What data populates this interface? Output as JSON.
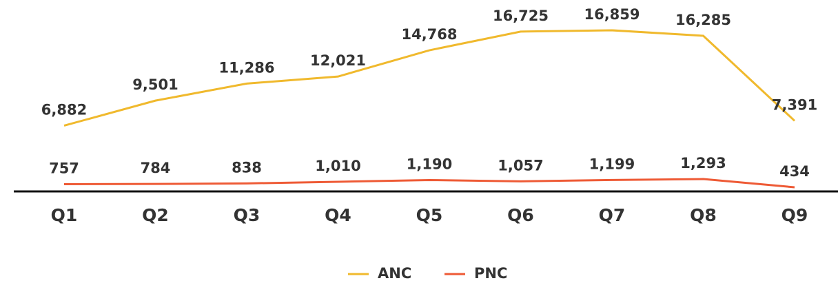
{
  "chart_data": {
    "type": "line",
    "categories": [
      "Q1",
      "Q2",
      "Q3",
      "Q4",
      "Q5",
      "Q6",
      "Q7",
      "Q8",
      "Q9"
    ],
    "series": [
      {
        "name": "ANC",
        "color": "#f0b92d",
        "values": [
          6882,
          9501,
          11286,
          12021,
          14768,
          16725,
          16859,
          16285,
          7391
        ],
        "value_labels": [
          "6,882",
          "9,501",
          "11,286",
          "12,021",
          "14,768",
          "16,725",
          "16,859",
          "16,285",
          "7,391"
        ]
      },
      {
        "name": "PNC",
        "color": "#ee5a35",
        "values": [
          757,
          784,
          838,
          1010,
          1190,
          1057,
          1199,
          1293,
          434
        ],
        "value_labels": [
          "757",
          "784",
          "838",
          "1,010",
          "1,190",
          "1,057",
          "1,199",
          "1,293",
          "434"
        ]
      }
    ],
    "legend": "bottom"
  }
}
